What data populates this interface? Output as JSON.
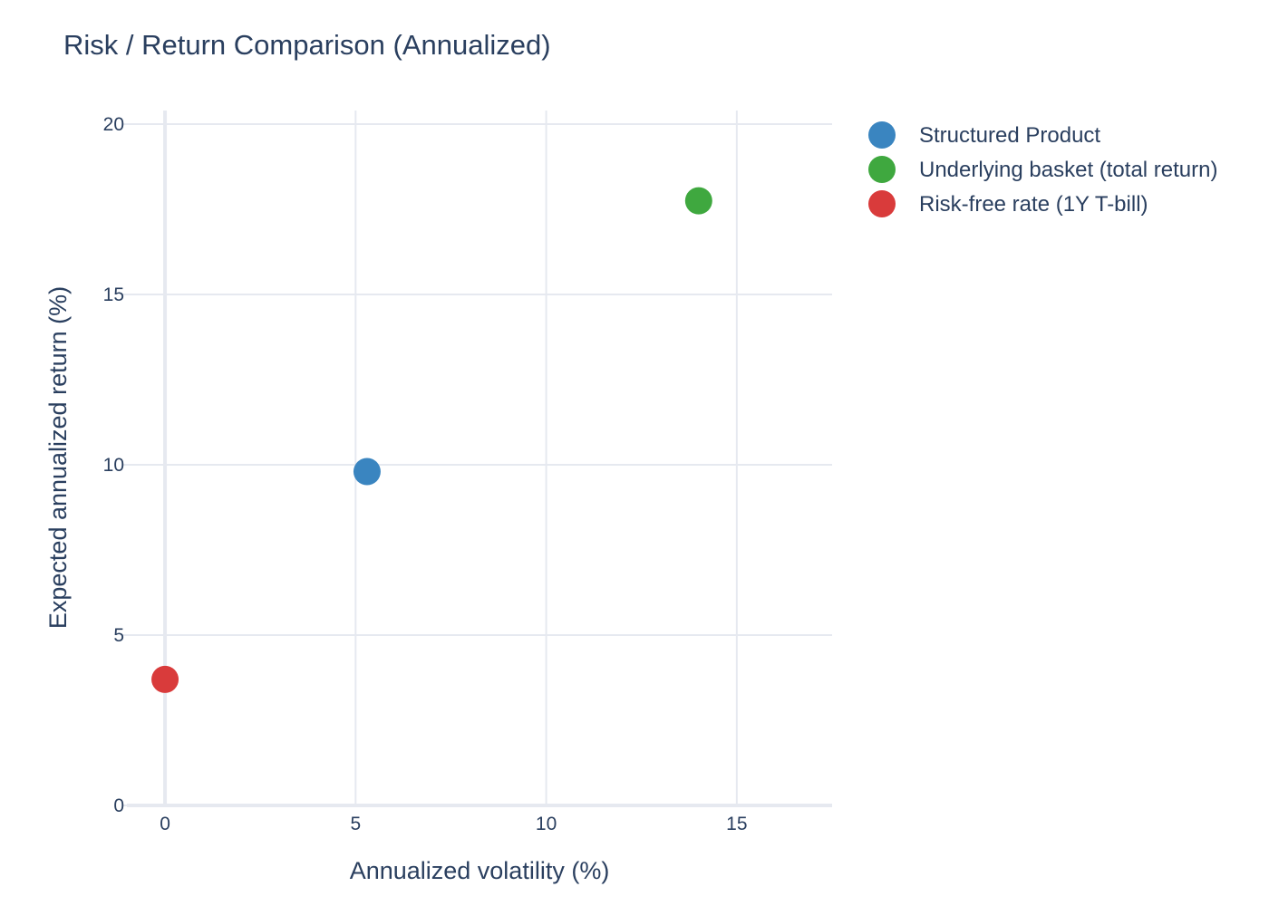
{
  "chart_data": {
    "type": "scatter",
    "title": "Risk / Return Comparison (Annualized)",
    "xlabel": "Annualized volatility (%)",
    "ylabel": "Expected annualized return (%)",
    "xlim": [
      -1,
      17.5
    ],
    "ylim": [
      0,
      20.4
    ],
    "x_ticks": [
      0,
      5,
      10,
      15
    ],
    "y_ticks": [
      0,
      5,
      10,
      15,
      20
    ],
    "grid": true,
    "legend_position": "right",
    "series": [
      {
        "name": "Structured Product",
        "color": "#3a85c0",
        "points": [
          {
            "x": 5.3,
            "y": 9.8
          }
        ]
      },
      {
        "name": "Underlying basket (total return)",
        "color": "#3fa83f",
        "points": [
          {
            "x": 14.0,
            "y": 17.75
          }
        ]
      },
      {
        "name": "Risk-free rate (1Y T-bill)",
        "color": "#d93b3b",
        "points": [
          {
            "x": 0.0,
            "y": 3.7
          }
        ]
      }
    ]
  }
}
